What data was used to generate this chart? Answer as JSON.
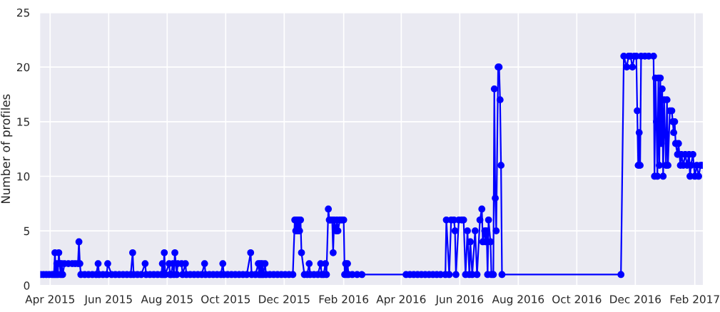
{
  "chart_data": {
    "type": "line",
    "ylabel": "Number of profiles",
    "marker": "circle",
    "line_style": "solid",
    "grid": true,
    "xlim": [
      "2015-03-21",
      "2017-02-10"
    ],
    "ylim": [
      0,
      25
    ],
    "yticks": [
      0,
      5,
      10,
      15,
      20,
      25
    ],
    "xticks": [
      {
        "value": "2015-04-01",
        "label": "Apr 2015"
      },
      {
        "value": "2015-06-01",
        "label": "Jun 2015"
      },
      {
        "value": "2015-08-01",
        "label": "Aug 2015"
      },
      {
        "value": "2015-10-01",
        "label": "Oct 2015"
      },
      {
        "value": "2015-12-01",
        "label": "Dec 2015"
      },
      {
        "value": "2016-02-01",
        "label": "Feb 2016"
      },
      {
        "value": "2016-04-01",
        "label": "Apr 2016"
      },
      {
        "value": "2016-06-01",
        "label": "Jun 2016"
      },
      {
        "value": "2016-08-01",
        "label": "Aug 2016"
      },
      {
        "value": "2016-10-01",
        "label": "Oct 2016"
      },
      {
        "value": "2016-12-01",
        "label": "Dec 2016"
      },
      {
        "value": "2017-02-01",
        "label": "Feb 2017"
      }
    ],
    "series": [
      {
        "color": "#0000ff",
        "x": [
          "2015-03-22",
          "2015-03-25",
          "2015-03-28",
          "2015-03-31",
          "2015-04-03",
          "2015-04-05",
          "2015-04-06",
          "2015-04-07",
          "2015-04-08",
          "2015-04-09",
          "2015-04-10",
          "2015-04-11",
          "2015-04-12",
          "2015-04-13",
          "2015-04-14",
          "2015-04-16",
          "2015-04-20",
          "2015-04-24",
          "2015-04-27",
          "2015-04-30",
          "2015-05-01",
          "2015-05-02",
          "2015-05-03",
          "2015-05-07",
          "2015-05-11",
          "2015-05-15",
          "2015-05-19",
          "2015-05-21",
          "2015-05-22",
          "2015-05-26",
          "2015-05-30",
          "2015-05-31",
          "2015-06-04",
          "2015-06-08",
          "2015-06-12",
          "2015-06-16",
          "2015-06-20",
          "2015-06-24",
          "2015-06-26",
          "2015-06-27",
          "2015-07-01",
          "2015-07-05",
          "2015-07-09",
          "2015-07-10",
          "2015-07-14",
          "2015-07-18",
          "2015-07-22",
          "2015-07-26",
          "2015-07-27",
          "2015-07-28",
          "2015-07-29",
          "2015-07-30",
          "2015-08-03",
          "2015-08-04",
          "2015-08-05",
          "2015-08-07",
          "2015-08-08",
          "2015-08-09",
          "2015-08-11",
          "2015-08-12",
          "2015-08-16",
          "2015-08-17",
          "2015-08-20",
          "2015-08-21",
          "2015-08-25",
          "2015-08-29",
          "2015-09-02",
          "2015-09-06",
          "2015-09-09",
          "2015-09-10",
          "2015-09-14",
          "2015-09-18",
          "2015-09-22",
          "2015-09-26",
          "2015-09-28",
          "2015-09-29",
          "2015-10-03",
          "2015-10-07",
          "2015-10-11",
          "2015-10-15",
          "2015-10-19",
          "2015-10-23",
          "2015-10-27",
          "2015-10-28",
          "2015-11-01",
          "2015-11-04",
          "2015-11-05",
          "2015-11-06",
          "2015-11-07",
          "2015-11-08",
          "2015-11-09",
          "2015-11-11",
          "2015-11-12",
          "2015-11-16",
          "2015-11-20",
          "2015-11-24",
          "2015-11-28",
          "2015-12-02",
          "2015-12-06",
          "2015-12-10",
          "2015-12-12",
          "2015-12-13",
          "2015-12-14",
          "2015-12-15",
          "2015-12-16",
          "2015-12-17",
          "2015-12-18",
          "2015-12-19",
          "2015-12-22",
          "2015-12-25",
          "2015-12-27",
          "2015-12-28",
          "2016-01-01",
          "2016-01-05",
          "2016-01-08",
          "2016-01-09",
          "2016-01-11",
          "2016-01-13",
          "2016-01-14",
          "2016-01-16",
          "2016-01-17",
          "2016-01-18",
          "2016-01-20",
          "2016-01-21",
          "2016-01-22",
          "2016-01-24",
          "2016-01-25",
          "2016-01-26",
          "2016-01-28",
          "2016-01-30",
          "2016-02-01",
          "2016-02-02",
          "2016-02-03",
          "2016-02-04",
          "2016-02-05",
          "2016-02-06",
          "2016-02-10",
          "2016-02-15",
          "2016-02-20",
          "2016-04-06",
          "2016-04-10",
          "2016-04-14",
          "2016-04-18",
          "2016-04-22",
          "2016-04-26",
          "2016-04-30",
          "2016-05-04",
          "2016-05-08",
          "2016-05-12",
          "2016-05-17",
          "2016-05-18",
          "2016-05-21",
          "2016-05-23",
          "2016-05-26",
          "2016-05-27",
          "2016-05-28",
          "2016-05-31",
          "2016-06-03",
          "2016-06-05",
          "2016-06-07",
          "2016-06-09",
          "2016-06-11",
          "2016-06-12",
          "2016-06-14",
          "2016-06-17",
          "2016-06-19",
          "2016-06-22",
          "2016-06-24",
          "2016-06-25",
          "2016-06-27",
          "2016-06-28",
          "2016-06-29",
          "2016-06-30",
          "2016-07-01",
          "2016-07-03",
          "2016-07-04",
          "2016-07-06",
          "2016-07-07",
          "2016-07-08",
          "2016-07-09",
          "2016-07-11",
          "2016-07-12",
          "2016-07-13",
          "2016-07-14",
          "2016-07-15",
          "2016-11-16",
          "2016-11-19",
          "2016-11-22",
          "2016-11-24",
          "2016-11-26",
          "2016-11-28",
          "2016-11-30",
          "2016-12-02",
          "2016-12-03",
          "2016-12-04",
          "2016-12-05",
          "2016-12-06",
          "2016-12-07",
          "2016-12-11",
          "2016-12-15",
          "2016-12-20",
          "2016-12-21",
          "2016-12-22",
          "2016-12-23",
          "2016-12-24",
          "2016-12-25",
          "2016-12-26",
          "2016-12-27",
          "2016-12-28",
          "2016-12-29",
          "2016-12-30",
          "2016-12-31",
          "2017-01-01",
          "2017-01-02",
          "2017-01-03",
          "2017-01-04",
          "2017-01-06",
          "2017-01-08",
          "2017-01-09",
          "2017-01-10",
          "2017-01-11",
          "2017-01-12",
          "2017-01-14",
          "2017-01-15",
          "2017-01-17",
          "2017-01-18",
          "2017-01-20",
          "2017-01-22",
          "2017-01-24",
          "2017-01-26",
          "2017-01-27",
          "2017-01-28",
          "2017-01-30",
          "2017-02-01",
          "2017-02-03",
          "2017-02-05",
          "2017-02-07",
          "2017-02-09"
        ],
        "values": [
          1,
          1,
          1,
          1,
          1,
          1,
          3,
          1,
          2,
          1,
          3,
          2,
          1,
          2,
          1,
          2,
          2,
          2,
          2,
          2,
          4,
          2,
          1,
          1,
          1,
          1,
          1,
          2,
          1,
          1,
          1,
          2,
          1,
          1,
          1,
          1,
          1,
          1,
          3,
          1,
          1,
          1,
          2,
          1,
          1,
          1,
          1,
          1,
          2,
          1,
          3,
          1,
          2,
          1,
          1,
          2,
          1,
          3,
          1,
          2,
          2,
          1,
          2,
          1,
          1,
          1,
          1,
          1,
          2,
          1,
          1,
          1,
          1,
          1,
          2,
          1,
          1,
          1,
          1,
          1,
          1,
          1,
          3,
          1,
          1,
          2,
          1,
          2,
          1,
          2,
          1,
          2,
          1,
          1,
          1,
          1,
          1,
          1,
          1,
          1,
          6,
          5,
          6,
          5,
          6,
          5,
          6,
          3,
          1,
          1,
          2,
          1,
          1,
          1,
          2,
          1,
          1,
          2,
          1,
          7,
          6,
          6,
          6,
          3,
          6,
          5,
          6,
          5,
          6,
          6,
          6,
          1,
          2,
          1,
          2,
          1,
          1,
          1,
          1,
          1,
          1,
          1,
          1,
          1,
          1,
          1,
          1,
          1,
          1,
          1,
          6,
          1,
          6,
          6,
          5,
          1,
          6,
          6,
          6,
          1,
          5,
          1,
          4,
          1,
          5,
          1,
          6,
          7,
          4,
          5,
          4,
          5,
          1,
          6,
          4,
          1,
          1,
          18,
          8,
          5,
          20,
          20,
          17,
          11,
          1,
          1,
          21,
          20,
          21,
          21,
          20,
          21,
          21,
          16,
          11,
          14,
          11,
          21,
          21,
          21,
          21,
          10,
          19,
          15,
          10,
          19,
          11,
          19,
          13,
          18,
          10,
          17,
          14,
          11,
          17,
          11,
          16,
          16,
          15,
          14,
          15,
          13,
          12,
          13,
          11,
          12,
          11,
          12,
          11,
          12,
          10,
          11,
          12,
          10,
          11,
          10,
          11,
          11
        ]
      }
    ]
  }
}
